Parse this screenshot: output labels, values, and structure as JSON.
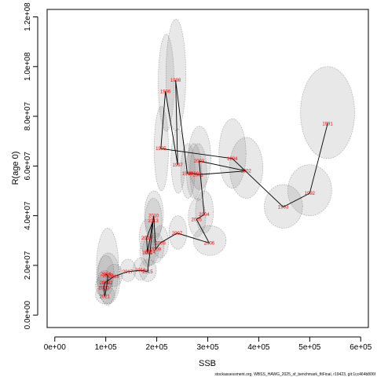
{
  "chart_data": {
    "type": "scatter",
    "xlabel": "SSB",
    "ylabel": "R(age 0)",
    "xlim": [
      -15000,
      615000
    ],
    "ylim": [
      -5000000,
      123000000
    ],
    "xticks": [
      0,
      100000,
      200000,
      300000,
      400000,
      500000,
      600000
    ],
    "xtick_labels": [
      "0e+00",
      "1e+05",
      "2e+05",
      "3e+05",
      "4e+05",
      "5e+05",
      "6e+05"
    ],
    "yticks": [
      0,
      20000000,
      40000000,
      60000000,
      80000000,
      100000000,
      120000000
    ],
    "ytick_labels": [
      "0.0e+00",
      "2.0e+07",
      "4.0e+07",
      "6.0e+07",
      "8.0e+07",
      "1.0e+08",
      "1.2e+08"
    ],
    "grid": false,
    "caption": "stockassessment.org, WBSS_HAWG_2025_sf_benchmark_fitFinal, r19423, git:1cc464b806f",
    "points": [
      {
        "year": "1991",
        "ssb": 535000,
        "rec": 77000000,
        "ssb_range": [
          482000,
          588000
        ],
        "rec_range": [
          63000000,
          100000000
        ]
      },
      {
        "year": "1992",
        "ssb": 500000,
        "rec": 49000000,
        "ssb_range": [
          457000,
          543000
        ],
        "rec_range": [
          40000000,
          60500000
        ]
      },
      {
        "year": "1993",
        "ssb": 448000,
        "rec": 43500000,
        "ssb_range": [
          411000,
          486000
        ],
        "rec_range": [
          35000000,
          52500000
        ]
      },
      {
        "year": "1994",
        "ssb": 348000,
        "rec": 63000000,
        "ssb_range": [
          322000,
          375000
        ],
        "rec_range": [
          51000000,
          79000000
        ]
      },
      {
        "year": "1995",
        "ssb": 208000,
        "rec": 67000000,
        "ssb_range": [
          195000,
          223000
        ],
        "rec_range": [
          50000000,
          84000000
        ]
      },
      {
        "year": "1996",
        "ssb": 217000,
        "rec": 90000000,
        "ssb_range": [
          203000,
          234000
        ],
        "rec_range": [
          74000000,
          113000000
        ]
      },
      {
        "year": "1997",
        "ssb": 241000,
        "rec": 60500000,
        "ssb_range": [
          228000,
          256000
        ],
        "rec_range": [
          49000000,
          75000000
        ]
      },
      {
        "year": "1998",
        "ssb": 237000,
        "rec": 94500000,
        "ssb_range": [
          218000,
          257000
        ],
        "rec_range": [
          74000000,
          119000000
        ]
      },
      {
        "year": "1999",
        "ssb": 260000,
        "rec": 57000000,
        "ssb_range": [
          247000,
          275000
        ],
        "rec_range": [
          47000000,
          69000000
        ]
      },
      {
        "year": "2000",
        "ssb": 272000,
        "rec": 57000000,
        "ssb_range": [
          258000,
          288000
        ],
        "rec_range": [
          47000000,
          69000000
        ]
      },
      {
        "year": "2001",
        "ssb": 281000,
        "rec": 56500000,
        "ssb_range": [
          265000,
          298000
        ],
        "rec_range": [
          46000000,
          69000000
        ]
      },
      {
        "year": "2002",
        "ssb": 375000,
        "rec": 58000000,
        "ssb_range": [
          343000,
          408000
        ],
        "rec_range": [
          47000000,
          71500000
        ]
      },
      {
        "year": "2003",
        "ssb": 283000,
        "rec": 62000000,
        "ssb_range": [
          262000,
          306000
        ],
        "rec_range": [
          50500000,
          76000000
        ]
      },
      {
        "year": "2004",
        "ssb": 293000,
        "rec": 40500000,
        "ssb_range": [
          276000,
          311000
        ],
        "rec_range": [
          33000000,
          50000000
        ]
      },
      {
        "year": "2005",
        "ssb": 278000,
        "rec": 38500000,
        "ssb_range": [
          262000,
          296000
        ],
        "rec_range": [
          31500000,
          47000000
        ]
      },
      {
        "year": "2006",
        "ssb": 303000,
        "rec": 29000000,
        "ssb_range": [
          272000,
          336000
        ],
        "rec_range": [
          24000000,
          36000000
        ]
      },
      {
        "year": "2007",
        "ssb": 240000,
        "rec": 33000000,
        "ssb_range": [
          224000,
          259000
        ],
        "rec_range": [
          26500000,
          40000000
        ]
      },
      {
        "year": "2008",
        "ssb": 207000,
        "rec": 29000000,
        "ssb_range": [
          192000,
          223000
        ],
        "rec_range": [
          23000000,
          36000000
        ]
      },
      {
        "year": "2009",
        "ssb": 198000,
        "rec": 26500000,
        "ssb_range": [
          183000,
          214000
        ],
        "rec_range": [
          21000000,
          33000000
        ]
      },
      {
        "year": "2010",
        "ssb": 194000,
        "rec": 40000000,
        "ssb_range": [
          176000,
          213000
        ],
        "rec_range": [
          31000000,
          50000000
        ]
      },
      {
        "year": "2011",
        "ssb": 182000,
        "rec": 25000000,
        "ssb_range": [
          167000,
          198000
        ],
        "rec_range": [
          19500000,
          32000000
        ]
      },
      {
        "year": "2012",
        "ssb": 180000,
        "rec": 31000000,
        "ssb_range": [
          166000,
          196000
        ],
        "rec_range": [
          24500000,
          38500000
        ]
      },
      {
        "year": "2013",
        "ssb": 193000,
        "rec": 38000000,
        "ssb_range": [
          177000,
          210000
        ],
        "rec_range": [
          29500000,
          47000000
        ]
      },
      {
        "year": "2014",
        "ssb": 187000,
        "rec": 25500000,
        "ssb_range": [
          172000,
          203000
        ],
        "rec_range": [
          20000000,
          32000000
        ]
      },
      {
        "year": "2015",
        "ssb": 182000,
        "rec": 17500000,
        "ssb_range": [
          166000,
          199000
        ],
        "rec_range": [
          13500000,
          22500000
        ]
      },
      {
        "year": "2016",
        "ssb": 168000,
        "rec": 18000000,
        "ssb_range": [
          154000,
          183000
        ],
        "rec_range": [
          14000000,
          23000000
        ]
      },
      {
        "year": "2017",
        "ssb": 143000,
        "rec": 17500000,
        "ssb_range": [
          128000,
          159000
        ],
        "rec_range": [
          13500000,
          22500000
        ]
      },
      {
        "year": "2018",
        "ssb": 116000,
        "rec": 15500000,
        "ssb_range": [
          100000,
          133000
        ],
        "rec_range": [
          11500000,
          20500000
        ]
      },
      {
        "year": "2019",
        "ssb": 98000,
        "rec": 13000000,
        "ssb_range": [
          84000,
          113000
        ],
        "rec_range": [
          9500000,
          18000000
        ]
      },
      {
        "year": "2020",
        "ssb": 96000,
        "rec": 11000000,
        "ssb_range": [
          80000,
          113000
        ],
        "rec_range": [
          7500000,
          16000000
        ]
      },
      {
        "year": "2021",
        "ssb": 98000,
        "rec": 7500000,
        "ssb_range": [
          80000,
          117000
        ],
        "rec_range": [
          4500000,
          12000000
        ]
      },
      {
        "year": "2022",
        "ssb": 103000,
        "rec": 13000000,
        "ssb_range": [
          82000,
          125000
        ],
        "rec_range": [
          4000000,
          35000000
        ]
      },
      {
        "year": "2023",
        "ssb": 104000,
        "rec": 16000000,
        "ssb_range": [
          82000,
          128000
        ],
        "rec_range": [
          4500000,
          25000000
        ]
      },
      {
        "year": "2024",
        "ssb": 100000,
        "rec": 16500000,
        "ssb_range": [
          85000,
          116000
        ],
        "rec_range": [
          10000000,
          24000000
        ]
      }
    ]
  }
}
